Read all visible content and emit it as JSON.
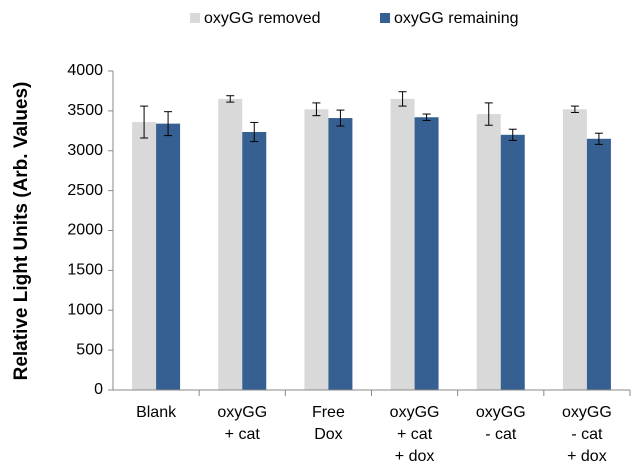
{
  "chart_data": {
    "type": "bar",
    "y_label": "Relative Light Units (Arb. Values)",
    "categories": [
      [
        "Blank"
      ],
      [
        "oxyGG",
        "+ cat"
      ],
      [
        "Free",
        "Dox"
      ],
      [
        "oxyGG",
        "+ cat",
        "+ dox"
      ],
      [
        "oxyGG",
        "- cat"
      ],
      [
        "oxyGG",
        "- cat",
        "+ dox"
      ]
    ],
    "series": [
      {
        "name": "oxyGG removed",
        "color": "#d9d9d9",
        "values": [
          3360,
          3650,
          3520,
          3650,
          3460,
          3520
        ],
        "errors": [
          200,
          40,
          80,
          90,
          140,
          40
        ]
      },
      {
        "name": "oxyGG remaining",
        "color": "#376092",
        "values": [
          3340,
          3235,
          3410,
          3420,
          3200,
          3150
        ],
        "errors": [
          150,
          120,
          100,
          40,
          70,
          70
        ]
      }
    ],
    "ylim": [
      0,
      4000
    ],
    "yticks": [
      0,
      500,
      1000,
      1500,
      2000,
      2500,
      3000,
      3500,
      4000
    ],
    "grid": false,
    "legend": "top"
  }
}
